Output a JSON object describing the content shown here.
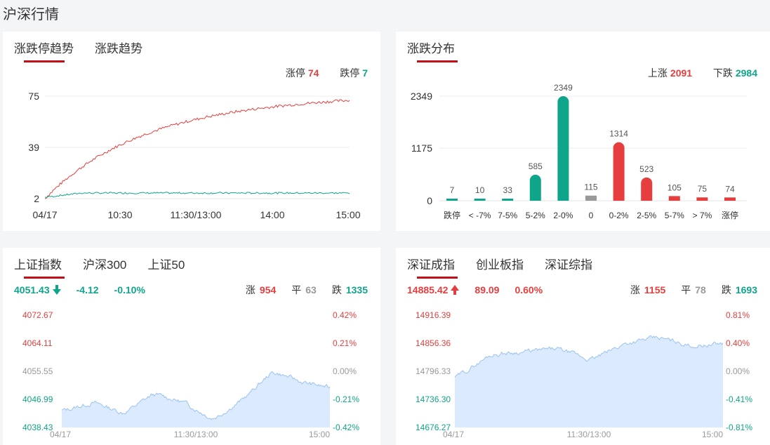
{
  "page_title": "沪深行情",
  "trend_panel": {
    "tabs": [
      "涨跌停趋势",
      "涨跌趋势"
    ],
    "limit_up_label": "涨停",
    "limit_up_value": "74",
    "limit_down_label": "跌停",
    "limit_down_value": "7",
    "y_ticks": [
      "75",
      "39",
      "2"
    ],
    "x_ticks": [
      "04/17",
      "10:30",
      "11:30/13:00",
      "14:00",
      "15:00"
    ],
    "colors": {
      "up": "#e63e3e",
      "down": "#0fa58a"
    }
  },
  "dist_panel": {
    "tab": "涨跌分布",
    "rise_label": "上涨",
    "rise_value": "2091",
    "fall_label": "下跌",
    "fall_value": "2984",
    "chart_data": {
      "type": "bar",
      "categories": [
        "跌停",
        "< -7%",
        "7-5%",
        "5-2%",
        "2-0%",
        "0",
        "0-2%",
        "2-5%",
        "5-7%",
        "> 7%",
        "涨停"
      ],
      "values": [
        7,
        10,
        33,
        585,
        2349,
        115,
        1314,
        523,
        105,
        75,
        74
      ],
      "y_ticks": [
        "2349",
        "1175",
        "0"
      ],
      "ylim": [
        0,
        2349
      ],
      "colors": [
        "#0fa58a",
        "#0fa58a",
        "#0fa58a",
        "#0fa58a",
        "#0fa58a",
        "#999999",
        "#e63e3e",
        "#e63e3e",
        "#e63e3e",
        "#e63e3e",
        "#e63e3e"
      ]
    }
  },
  "sh_panel": {
    "tabs": [
      "上证指数",
      "沪深300",
      "上证50"
    ],
    "price": "4051.43",
    "change": "-4.12",
    "pct": "-0.10%",
    "up_label": "涨",
    "up_value": "954",
    "flat_label": "平",
    "flat_value": "63",
    "down_label": "跌",
    "down_value": "1335",
    "left_ticks": [
      "4072.67",
      "4064.11",
      "4055.55",
      "4046.99",
      "4038.43"
    ],
    "right_ticks": [
      "0.42%",
      "0.21%",
      "0.00%",
      "-0.21%",
      "-0.42%"
    ],
    "x_ticks": [
      "04/17",
      "11:30/13:00",
      "15:00"
    ]
  },
  "sz_panel": {
    "tabs": [
      "深证成指",
      "创业板指",
      "深证综指"
    ],
    "price": "14885.42",
    "change": "89.09",
    "pct": "0.60%",
    "up_label": "涨",
    "up_value": "1155",
    "flat_label": "平",
    "flat_value": "78",
    "down_label": "跌",
    "down_value": "1693",
    "left_ticks": [
      "14916.39",
      "14856.36",
      "14796.33",
      "14736.30",
      "14676.27"
    ],
    "right_ticks": [
      "0.81%",
      "0.40%",
      "0.00%",
      "-0.41%",
      "-0.81%"
    ],
    "x_ticks": [
      "04/17",
      "11:30/13:00",
      "15:00"
    ]
  }
}
